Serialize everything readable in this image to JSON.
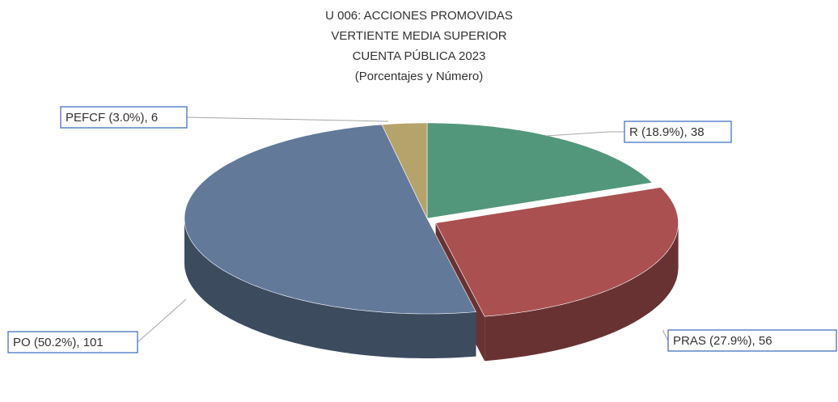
{
  "chart_data": {
    "type": "pie",
    "title": [
      "U 006: ACCIONES PROMOVIDAS",
      "VERTIENTE MEDIA SUPERIOR",
      "CUENTA PÚBLICA 2023",
      "(Porcentajes y Número)"
    ],
    "categories": [
      "R",
      "PRAS",
      "PO",
      "PEFCF"
    ],
    "values": [
      38,
      56,
      101,
      6
    ],
    "value_labels": [
      "R (18.9%), 38",
      "PRAS (27.9%), 56",
      "PO (50.2%), 101",
      "PEFCF (3.0%), 6"
    ],
    "colors": [
      "#52977b",
      "#aa5050",
      "#63799a",
      "#b6a36b"
    ]
  }
}
